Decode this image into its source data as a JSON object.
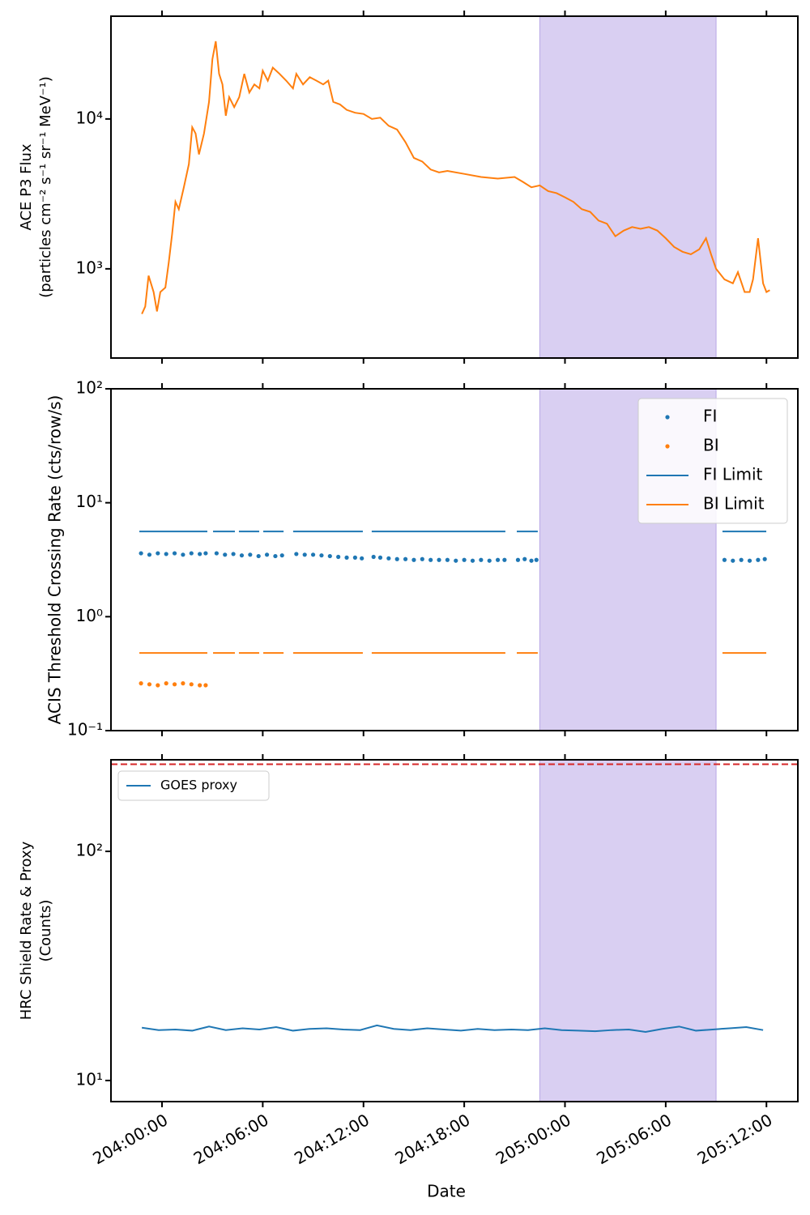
{
  "chart_data": [
    {
      "type": "line",
      "ylabel": [
        "ACE P3 Flux",
        "(particles cm⁻² s⁻¹ sr⁻¹ MeV⁻¹)"
      ],
      "log_y": true,
      "ylim": [
        254,
        48500
      ],
      "yticks": [
        {
          "value": 1000,
          "label": "10³"
        },
        {
          "value": 10000,
          "label": "10⁴"
        }
      ],
      "span": [
        22.5,
        33.0
      ],
      "span_color": "#d9cff2",
      "series": [
        {
          "color": "#ff7f0e",
          "style": "line",
          "x": [
            -1.2,
            -1.0,
            -0.8,
            -0.5,
            -0.3,
            -0.1,
            0.2,
            0.4,
            0.6,
            0.8,
            1.0,
            1.3,
            1.6,
            1.8,
            2.0,
            2.2,
            2.5,
            2.8,
            3.0,
            3.2,
            3.4,
            3.6,
            3.8,
            4.0,
            4.3,
            4.6,
            4.9,
            5.2,
            5.5,
            5.8,
            6.0,
            6.3,
            6.6,
            7.0,
            7.4,
            7.8,
            8.0,
            8.4,
            8.8,
            9.2,
            9.6,
            9.9,
            10.2,
            10.6,
            11.0,
            11.5,
            12.0,
            12.5,
            13.0,
            13.5,
            14.0,
            14.5,
            15.0,
            15.5,
            16.0,
            16.5,
            17.0,
            18.0,
            19.0,
            20.0,
            21.0,
            21.5,
            22.0,
            22.5,
            23.0,
            23.5,
            24.0,
            24.5,
            25.0,
            25.5,
            26.0,
            26.5,
            27.0,
            27.5,
            28.0,
            28.5,
            29.0,
            29.5,
            30.0,
            30.5,
            31.0,
            31.5,
            32.0,
            32.4,
            32.7,
            33.0,
            33.5,
            34.0,
            34.3,
            34.7,
            35.0,
            35.2,
            35.5,
            35.8,
            36.0,
            36.2
          ],
          "values": [
            500,
            560,
            900,
            700,
            520,
            700,
            750,
            1100,
            1700,
            2800,
            2500,
            3500,
            5000,
            8800,
            8000,
            5800,
            8000,
            13000,
            25000,
            33000,
            20000,
            17000,
            10500,
            14000,
            12000,
            14000,
            20000,
            15000,
            17000,
            16000,
            21000,
            18000,
            22000,
            20000,
            18000,
            16000,
            20000,
            17000,
            19000,
            18000,
            17000,
            18000,
            13000,
            12500,
            11500,
            11000,
            10800,
            10000,
            10200,
            9000,
            8500,
            7000,
            5500,
            5200,
            4600,
            4400,
            4500,
            4300,
            4100,
            4000,
            4100,
            3800,
            3500,
            3600,
            3300,
            3200,
            3000,
            2800,
            2500,
            2400,
            2100,
            2000,
            1650,
            1800,
            1900,
            1850,
            1900,
            1800,
            1600,
            1400,
            1300,
            1250,
            1350,
            1600,
            1250,
            1000,
            850,
            800,
            950,
            700,
            700,
            850,
            1600,
            800,
            700,
            720
          ]
        }
      ]
    },
    {
      "type": "line",
      "ylabel": [
        "ACIS Threshold Crossing Rate (cts/row/s)"
      ],
      "log_y": true,
      "ylim": [
        0.1,
        100
      ],
      "yticks": [
        {
          "value": 0.1,
          "label": "10⁻¹"
        },
        {
          "value": 1,
          "label": "10⁰"
        },
        {
          "value": 10,
          "label": "10¹"
        },
        {
          "value": 100,
          "label": "10²"
        }
      ],
      "span": [
        22.5,
        33.0
      ],
      "span_color": "#d9cff2",
      "legend": "upper right",
      "series": [
        {
          "name": "FI",
          "color": "#1f77b4",
          "style": "dots",
          "x": [
            -1.25,
            -0.75,
            -0.25,
            0.25,
            0.75,
            1.25,
            1.75,
            2.25,
            2.6,
            3.25,
            3.75,
            4.25,
            4.75,
            5.25,
            5.75,
            6.25,
            6.75,
            7.15,
            8.0,
            8.5,
            9.0,
            9.5,
            10.0,
            10.5,
            11.0,
            11.5,
            11.9,
            12.6,
            13.0,
            13.5,
            14.0,
            14.5,
            15.0,
            15.5,
            16.0,
            16.5,
            17.0,
            17.5,
            18.0,
            18.5,
            19.0,
            19.5,
            20.0,
            20.4,
            21.2,
            21.6,
            22.0,
            22.3,
            33.5,
            34.0,
            34.5,
            35.0,
            35.5,
            35.9
          ],
          "values": [
            3.6,
            3.5,
            3.6,
            3.55,
            3.6,
            3.5,
            3.6,
            3.55,
            3.6,
            3.6,
            3.5,
            3.55,
            3.45,
            3.5,
            3.4,
            3.5,
            3.4,
            3.45,
            3.55,
            3.5,
            3.5,
            3.45,
            3.4,
            3.35,
            3.3,
            3.3,
            3.25,
            3.35,
            3.3,
            3.25,
            3.2,
            3.2,
            3.15,
            3.2,
            3.15,
            3.15,
            3.15,
            3.1,
            3.15,
            3.1,
            3.15,
            3.1,
            3.15,
            3.15,
            3.15,
            3.2,
            3.1,
            3.15,
            3.15,
            3.1,
            3.15,
            3.1,
            3.15,
            3.2
          ]
        },
        {
          "name": "BI",
          "color": "#ff7f0e",
          "style": "dots",
          "x": [
            -1.25,
            -0.75,
            -0.25,
            0.25,
            0.75,
            1.25,
            1.75,
            2.25,
            2.6
          ],
          "values": [
            0.26,
            0.255,
            0.25,
            0.26,
            0.255,
            0.26,
            0.255,
            0.25,
            0.25
          ]
        },
        {
          "name": "FI Limit",
          "color": "#1f77b4",
          "style": "line",
          "x": [
            -1.35,
            2.7,
            null,
            3.04,
            4.34,
            null,
            4.58,
            5.79,
            null,
            6.03,
            7.24,
            null,
            7.81,
            11.96,
            null,
            12.49,
            20.45,
            null,
            21.13,
            22.38,
            null,
            33.38,
            35.99
          ],
          "values": [
            5.6,
            5.6,
            null,
            5.6,
            5.6,
            null,
            5.6,
            5.6,
            null,
            5.6,
            5.6,
            null,
            5.6,
            5.6,
            null,
            5.6,
            5.6,
            null,
            5.6,
            5.6,
            null,
            5.6,
            5.6
          ]
        },
        {
          "name": "BI Limit",
          "color": "#ff7f0e",
          "style": "line",
          "x": [
            -1.35,
            2.7,
            null,
            3.04,
            4.34,
            null,
            4.58,
            5.79,
            null,
            6.03,
            7.24,
            null,
            7.81,
            11.96,
            null,
            12.49,
            20.45,
            null,
            21.13,
            22.38,
            null,
            33.38,
            35.99
          ],
          "values": [
            0.48,
            0.48,
            null,
            0.48,
            0.48,
            null,
            0.48,
            0.48,
            null,
            0.48,
            0.48,
            null,
            0.48,
            0.48,
            null,
            0.48,
            0.48,
            null,
            0.48,
            0.48,
            null,
            0.48,
            0.48
          ]
        }
      ]
    },
    {
      "type": "line",
      "ylabel": [
        "HRC Shield Rate & Proxy",
        "(Counts)"
      ],
      "xlabel": "Date",
      "log_y": true,
      "ylim": [
        8.09,
        251
      ],
      "yticks": [
        {
          "value": 10,
          "label": "10¹"
        },
        {
          "value": 100,
          "label": "10²"
        }
      ],
      "xlim": [
        -3.04,
        37.87
      ],
      "xticks": [
        {
          "value": 0,
          "label": "204:00:00"
        },
        {
          "value": 6,
          "label": "204:06:00"
        },
        {
          "value": 12,
          "label": "204:12:00"
        },
        {
          "value": 18,
          "label": "204:18:00"
        },
        {
          "value": 24,
          "label": "205:00:00"
        },
        {
          "value": 30,
          "label": "205:06:00"
        },
        {
          "value": 36,
          "label": "205:12:00"
        }
      ],
      "span": [
        22.5,
        33.0
      ],
      "span_color": "#d9cff2",
      "legend": "upper left",
      "threshold": 240,
      "threshold_color": "#d62728",
      "series": [
        {
          "name": "GOES proxy",
          "color": "#1f77b4",
          "style": "line",
          "x": [
            -1.2,
            -0.2,
            0.8,
            1.8,
            2.8,
            3.8,
            4.8,
            5.8,
            6.8,
            7.8,
            8.8,
            9.8,
            10.8,
            11.8,
            12.8,
            13.8,
            14.8,
            15.8,
            16.8,
            17.8,
            18.8,
            19.8,
            20.8,
            21.8,
            22.8,
            23.8,
            24.8,
            25.8,
            26.8,
            27.8,
            28.8,
            29.8,
            30.8,
            31.8,
            32.8,
            33.8,
            34.8,
            35.8
          ],
          "values": [
            17.0,
            16.6,
            16.7,
            16.5,
            17.2,
            16.6,
            16.9,
            16.7,
            17.1,
            16.5,
            16.8,
            16.9,
            16.7,
            16.6,
            17.4,
            16.8,
            16.6,
            16.9,
            16.7,
            16.5,
            16.8,
            16.6,
            16.7,
            16.6,
            16.9,
            16.6,
            16.5,
            16.4,
            16.6,
            16.7,
            16.3,
            16.8,
            17.2,
            16.5,
            16.7,
            16.9,
            17.1,
            16.6
          ]
        }
      ]
    }
  ]
}
